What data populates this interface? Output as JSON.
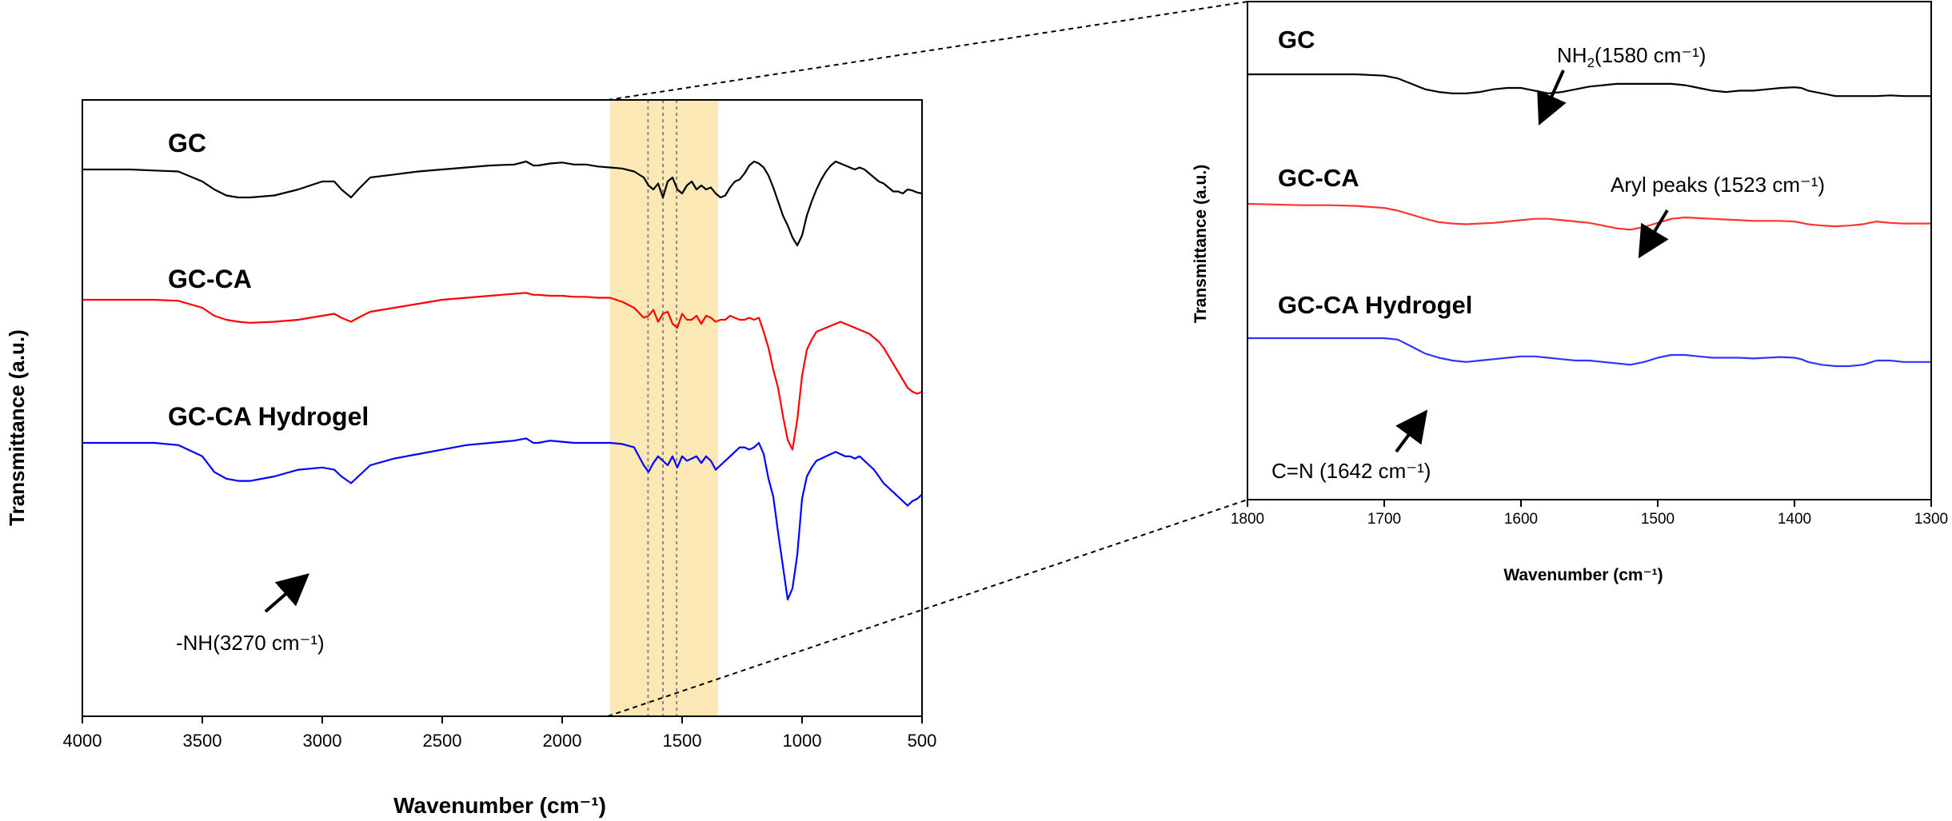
{
  "chart_data": [
    {
      "type": "line",
      "id": "main",
      "xlabel": "Wavenumber (cm⁻¹)",
      "ylabel": "Transmittance (a.u.)",
      "xlim": [
        4000,
        500
      ],
      "x_reversed": true,
      "xticks": [
        4000,
        3500,
        3000,
        2500,
        2000,
        1500,
        1000,
        500
      ],
      "yticks_shown": false,
      "highlight_region": {
        "x_from": 1800,
        "x_to": 1350,
        "color": "#fbe8b5"
      },
      "guide_lines_x": [
        1642,
        1580,
        1523
      ],
      "series": [
        {
          "name": "GC",
          "color": "#000000",
          "x": [
            4000,
            3900,
            3800,
            3700,
            3600,
            3500,
            3450,
            3400,
            3350,
            3300,
            3200,
            3100,
            3000,
            2950,
            2920,
            2880,
            2850,
            2800,
            2700,
            2600,
            2500,
            2400,
            2300,
            2200,
            2150,
            2120,
            2100,
            2050,
            2000,
            1950,
            1900,
            1850,
            1800,
            1750,
            1700,
            1660,
            1640,
            1620,
            1600,
            1580,
            1560,
            1540,
            1520,
            1500,
            1480,
            1460,
            1440,
            1420,
            1400,
            1380,
            1360,
            1340,
            1320,
            1300,
            1280,
            1260,
            1240,
            1220,
            1200,
            1180,
            1160,
            1140,
            1120,
            1100,
            1080,
            1060,
            1040,
            1020,
            1000,
            980,
            960,
            940,
            920,
            900,
            880,
            860,
            840,
            820,
            800,
            780,
            760,
            740,
            720,
            700,
            680,
            660,
            640,
            620,
            600,
            580,
            560,
            540,
            520,
            500
          ],
          "y": [
            78,
            78,
            78,
            77.5,
            77,
            72,
            68,
            65,
            64,
            64,
            65,
            68,
            72,
            72,
            68,
            64,
            68,
            74,
            75.5,
            77,
            78,
            79,
            80,
            80.5,
            82,
            80,
            80,
            81,
            81.5,
            80.5,
            80.5,
            79.5,
            79,
            78.5,
            77,
            74,
            70,
            68,
            71,
            64,
            72,
            74,
            68,
            66,
            70,
            72,
            68,
            70,
            68,
            69,
            66,
            64,
            65,
            69,
            72,
            73,
            76,
            80,
            82,
            81,
            79,
            75,
            69,
            62,
            55,
            50,
            44,
            40,
            45,
            55,
            62,
            68,
            73,
            77,
            80,
            82,
            81,
            80,
            79,
            78,
            79,
            78,
            76,
            74,
            72,
            71,
            69,
            67,
            67,
            66,
            68,
            67.5,
            66.5,
            66
          ]
        },
        {
          "name": "GC-CA",
          "color": "#ff0000",
          "x": [
            4000,
            3900,
            3800,
            3700,
            3600,
            3500,
            3450,
            3400,
            3350,
            3300,
            3200,
            3100,
            3000,
            2950,
            2920,
            2880,
            2850,
            2800,
            2700,
            2600,
            2500,
            2400,
            2300,
            2200,
            2150,
            2120,
            2100,
            2050,
            2000,
            1950,
            1900,
            1850,
            1800,
            1750,
            1700,
            1660,
            1640,
            1620,
            1600,
            1580,
            1560,
            1540,
            1520,
            1500,
            1480,
            1460,
            1440,
            1420,
            1400,
            1380,
            1360,
            1340,
            1320,
            1300,
            1280,
            1260,
            1240,
            1220,
            1200,
            1180,
            1160,
            1140,
            1120,
            1100,
            1080,
            1060,
            1040,
            1020,
            1000,
            980,
            960,
            940,
            920,
            900,
            880,
            860,
            840,
            820,
            800,
            780,
            760,
            740,
            720,
            700,
            680,
            660,
            640,
            620,
            600,
            580,
            560,
            540,
            520,
            500
          ],
          "y": [
            50,
            50,
            50,
            50,
            49.5,
            46,
            42,
            40,
            39,
            38.5,
            39,
            40,
            42,
            43,
            41,
            39,
            41,
            44,
            46,
            48,
            50,
            51,
            52,
            53,
            53.5,
            52.5,
            52.5,
            52,
            52,
            51.5,
            51.5,
            51,
            51,
            49,
            46,
            41,
            42,
            45,
            39,
            43,
            44,
            38,
            36,
            43,
            40,
            40,
            42,
            38,
            42,
            41,
            39,
            40,
            40,
            42,
            41,
            40,
            40,
            41,
            40,
            41,
            34,
            26,
            15,
            6,
            -8,
            -20,
            -25,
            -10,
            12,
            25,
            30,
            34,
            35,
            36,
            37,
            38,
            39,
            38,
            37,
            36,
            35,
            34,
            33,
            31,
            29,
            26,
            22,
            18,
            14,
            10,
            6,
            4,
            3,
            4
          ]
        },
        {
          "name": "GC-CA Hydrogel",
          "color": "#0000ff",
          "x": [
            4000,
            3900,
            3800,
            3700,
            3600,
            3500,
            3450,
            3400,
            3350,
            3300,
            3200,
            3100,
            3000,
            2950,
            2920,
            2880,
            2850,
            2800,
            2700,
            2600,
            2500,
            2400,
            2300,
            2200,
            2150,
            2120,
            2100,
            2050,
            2000,
            1950,
            1900,
            1850,
            1800,
            1750,
            1700,
            1660,
            1640,
            1620,
            1600,
            1580,
            1560,
            1540,
            1520,
            1500,
            1480,
            1460,
            1440,
            1420,
            1400,
            1380,
            1360,
            1340,
            1320,
            1300,
            1280,
            1260,
            1240,
            1220,
            1200,
            1180,
            1160,
            1140,
            1120,
            1100,
            1080,
            1060,
            1040,
            1020,
            1000,
            980,
            960,
            940,
            920,
            900,
            880,
            860,
            840,
            820,
            800,
            780,
            760,
            740,
            720,
            700,
            680,
            660,
            640,
            620,
            600,
            580,
            560,
            540,
            520,
            500
          ],
          "y": [
            30,
            30,
            30,
            30,
            29,
            24,
            17,
            14,
            13,
            13,
            15,
            18,
            19,
            18,
            15,
            12,
            15,
            20,
            23,
            25,
            27,
            29,
            30,
            31,
            32,
            30,
            30,
            31,
            30.5,
            30,
            30,
            30,
            30,
            29.5,
            28,
            20,
            17,
            21,
            24,
            22,
            20,
            24,
            19,
            24,
            22,
            23,
            24,
            21,
            24,
            22,
            18,
            20,
            22,
            24,
            26,
            28,
            28,
            27,
            28,
            30,
            25,
            14,
            6,
            -10,
            -25,
            -40,
            -35,
            -20,
            5,
            15,
            19,
            22,
            23,
            24,
            25,
            26,
            25,
            24,
            24,
            23,
            24,
            22,
            20,
            18,
            15,
            12,
            10,
            8,
            6,
            4,
            2,
            4,
            5,
            7
          ]
        }
      ],
      "annotations": [
        {
          "text": "-NH(3270 cm⁻¹)"
        }
      ]
    },
    {
      "type": "line",
      "id": "inset",
      "xlabel": "Wavenumber (cm⁻¹)",
      "ylabel": "Transmittance (a.u.)",
      "xlim": [
        1800,
        1300
      ],
      "x_reversed": true,
      "xticks": [
        1800,
        1700,
        1600,
        1500,
        1400,
        1300
      ],
      "yticks_shown": false,
      "series": [
        {
          "name": "GC",
          "color": "#000000",
          "x": [
            1800,
            1780,
            1760,
            1740,
            1720,
            1700,
            1690,
            1680,
            1670,
            1660,
            1650,
            1640,
            1630,
            1620,
            1610,
            1600,
            1590,
            1580,
            1570,
            1560,
            1550,
            1540,
            1530,
            1520,
            1510,
            1500,
            1490,
            1480,
            1470,
            1460,
            1450,
            1440,
            1430,
            1420,
            1410,
            1400,
            1395,
            1390,
            1380,
            1370,
            1360,
            1350,
            1340,
            1330,
            1320,
            1310,
            1300
          ],
          "y": [
            100,
            100,
            100,
            100,
            100,
            99,
            97,
            93,
            89,
            87,
            86,
            86,
            87,
            89,
            90,
            90,
            88,
            86,
            87,
            89,
            91,
            92,
            93,
            93,
            93,
            93,
            93,
            92,
            90,
            88,
            87,
            88,
            88,
            89,
            90,
            90.5,
            90,
            88,
            86,
            84,
            84,
            84,
            84,
            84.5,
            84,
            84,
            84
          ]
        },
        {
          "name": "GC-CA",
          "color": "#ff3333",
          "x": [
            1800,
            1780,
            1760,
            1740,
            1720,
            1700,
            1690,
            1680,
            1670,
            1660,
            1650,
            1640,
            1630,
            1620,
            1610,
            1600,
            1590,
            1580,
            1570,
            1560,
            1550,
            1540,
            1530,
            1520,
            1510,
            1500,
            1490,
            1480,
            1470,
            1460,
            1450,
            1440,
            1430,
            1420,
            1410,
            1400,
            1395,
            1390,
            1380,
            1370,
            1360,
            1350,
            1340,
            1330,
            1320,
            1310,
            1300
          ],
          "y": [
            60,
            59.5,
            59,
            59,
            58.5,
            57,
            55,
            52,
            49,
            46.5,
            45.5,
            45,
            45.5,
            46,
            47,
            48,
            49,
            49,
            48,
            47,
            46,
            44,
            42,
            41,
            43,
            46,
            49,
            50,
            49.5,
            49,
            48.5,
            48,
            47.5,
            47.5,
            47.5,
            47,
            46,
            45,
            44,
            43.5,
            44,
            45,
            47,
            46,
            45.5,
            45.5,
            45.5
          ]
        },
        {
          "name": "GC-CA Hydrogel",
          "color": "#3333ff",
          "x": [
            1800,
            1780,
            1760,
            1740,
            1720,
            1700,
            1690,
            1680,
            1670,
            1660,
            1650,
            1640,
            1630,
            1620,
            1610,
            1600,
            1590,
            1580,
            1570,
            1560,
            1550,
            1540,
            1530,
            1520,
            1510,
            1500,
            1490,
            1480,
            1470,
            1460,
            1450,
            1440,
            1430,
            1420,
            1410,
            1400,
            1395,
            1390,
            1380,
            1370,
            1360,
            1350,
            1340,
            1330,
            1320,
            1310,
            1300
          ],
          "y": [
            30,
            30,
            30,
            30,
            30,
            30,
            29,
            24,
            19,
            16,
            14,
            13,
            14,
            15,
            16,
            17,
            17,
            16,
            15,
            14,
            14,
            13,
            12,
            11,
            13,
            16,
            18,
            18,
            17,
            16,
            16,
            16,
            15.5,
            16,
            16.5,
            16,
            15,
            13,
            11,
            10,
            10,
            11,
            14,
            14,
            13,
            13,
            13
          ]
        }
      ],
      "annotations": [
        {
          "text_main": "NH",
          "text_sub": "2",
          "text_rest": "(1580  cm⁻¹)"
        },
        {
          "text": "Aryl peaks  (1523 cm⁻¹)"
        },
        {
          "text": "C=N  (1642 cm⁻¹)"
        }
      ]
    }
  ]
}
